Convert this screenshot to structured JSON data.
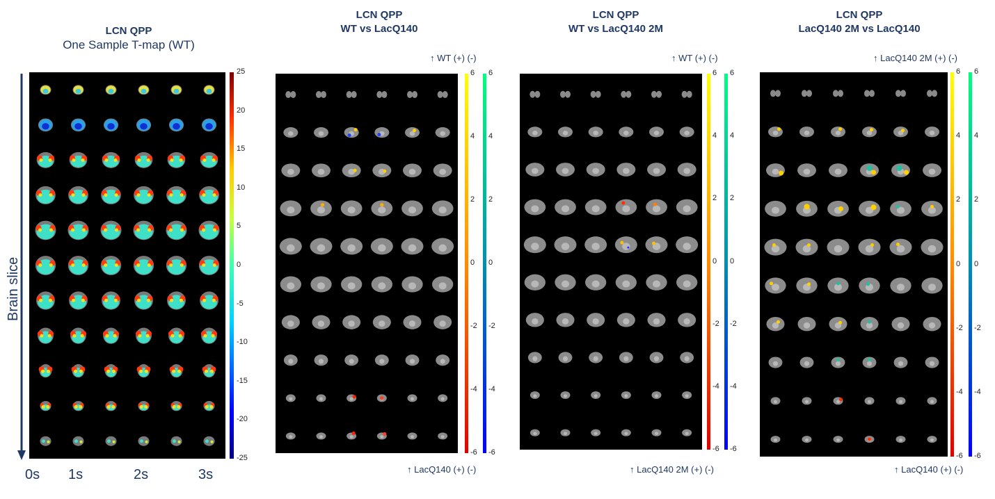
{
  "panels": [
    {
      "title": "LCN QPP",
      "subtitle": "One Sample T-map (WT)",
      "type": "tmap",
      "colorbar_range": [
        -25,
        25
      ],
      "colorbar_ticks": [
        "25",
        "20",
        "15",
        "10",
        "5",
        "0",
        "-5",
        "-10",
        "-15",
        "-20",
        "-25"
      ]
    },
    {
      "title": "LCN QPP",
      "subtitle": "WT vs LacQ140",
      "type": "compare",
      "top_label": "↑ WT  (+)  (-)",
      "bottom_label": "↑ LacQ140 (+)  (-)",
      "colorbar_range": [
        -6,
        6
      ],
      "colorbar_ticks": [
        "6",
        "4",
        "2",
        "0",
        "-2",
        "-4",
        "-6"
      ]
    },
    {
      "title": "LCN QPP",
      "subtitle": "WT vs LacQ140 2M",
      "type": "compare",
      "top_label": "↑ WT  (+)  (-)",
      "bottom_label": "↑ LacQ140 2M  (+)  (-)",
      "colorbar_range": [
        -6,
        6
      ],
      "colorbar_ticks": [
        "6",
        "4",
        "2",
        "0",
        "-2",
        "-4",
        "-6"
      ]
    },
    {
      "title": "LCN QPP",
      "subtitle": "LacQ140 2M vs LacQ140",
      "type": "compare",
      "top_label": "↑ LacQ140 2M  (+)  (-)",
      "bottom_label": "↑ LacQ140 (+)  (-)",
      "colorbar_range": [
        -6,
        6
      ],
      "colorbar_ticks": [
        "6",
        "4",
        "2",
        "0",
        "-2",
        "-4",
        "-6"
      ]
    }
  ],
  "axis": {
    "y_label": "Brain slice",
    "time_labels": [
      "0s",
      "1s",
      "2s",
      "3s"
    ]
  },
  "grid": {
    "rows": 10,
    "cols": 6
  }
}
